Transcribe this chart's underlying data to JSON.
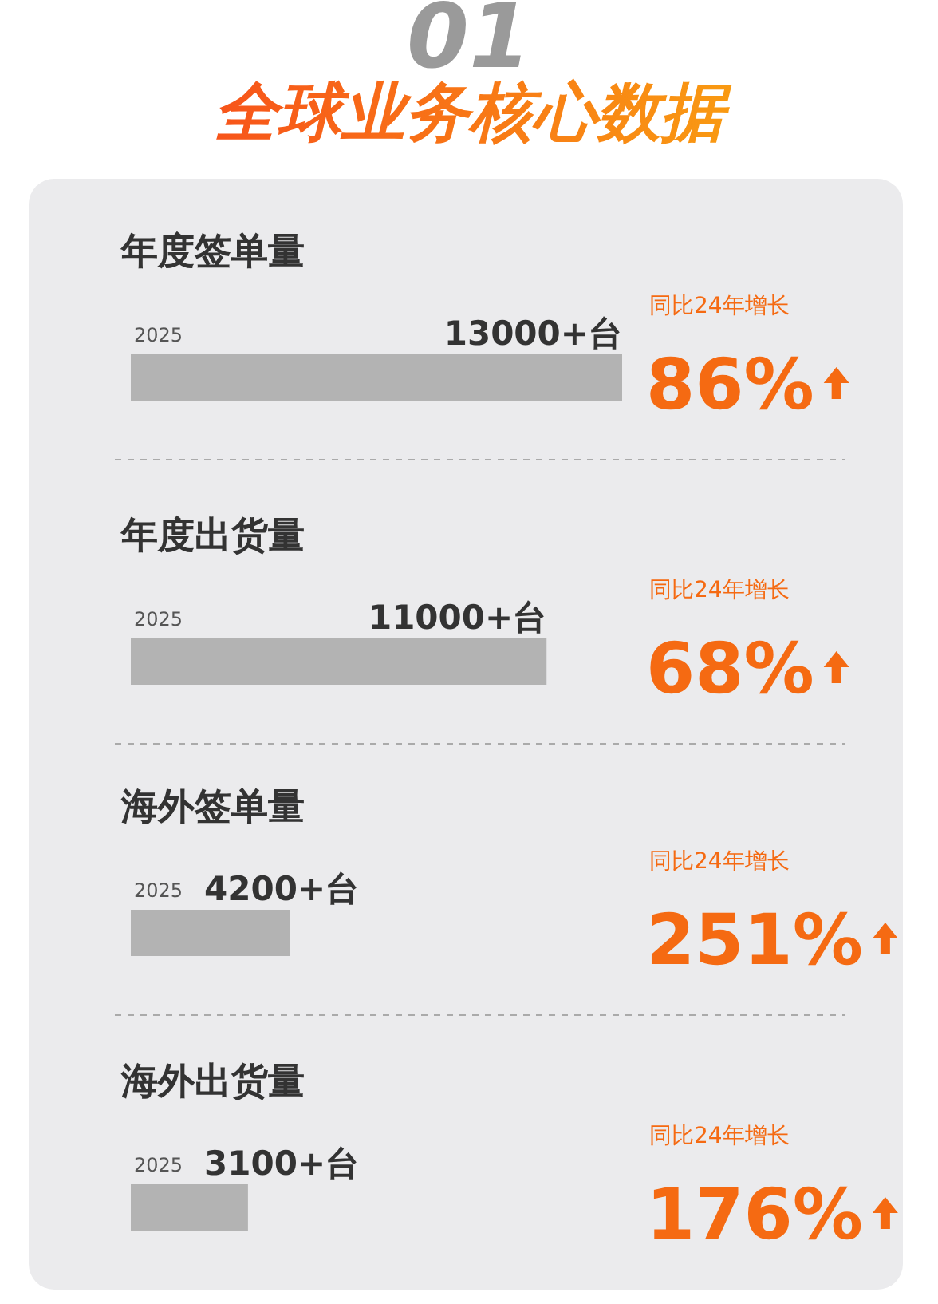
{
  "chart_data": {
    "type": "bar",
    "orientation": "horizontal",
    "title": "全球业务核心数据",
    "categories": [
      "年度签单量",
      "年度出货量",
      "海外签单量",
      "海外出货量"
    ],
    "values": [
      13000,
      11000,
      4200,
      3100
    ],
    "value_labels": [
      "13000+台",
      "11000+台",
      "4200+台",
      "3100+台"
    ],
    "color": "#b3b3b3",
    "annotations": [
      "01",
      "2025",
      "同比24年增长",
      "86%",
      "2025",
      "同比24年增长",
      "68%",
      "2025",
      "同比24年增长",
      "251%",
      "2025",
      "同比24年增长",
      "176%"
    ]
  }
}
